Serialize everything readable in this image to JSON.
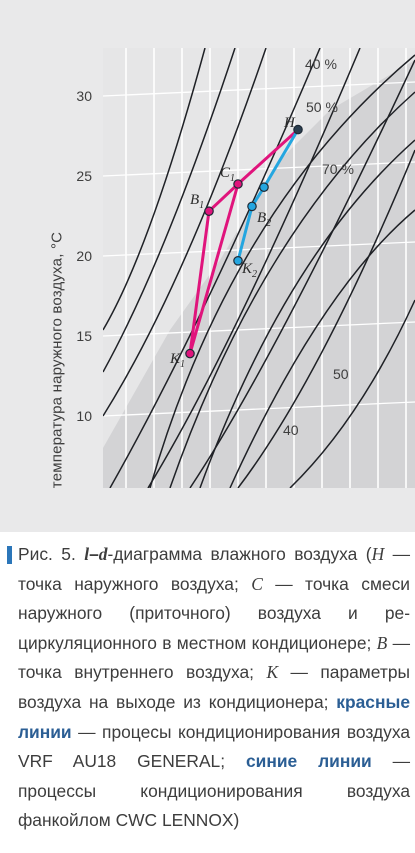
{
  "chart_data": {
    "type": "line",
    "title": "",
    "xlabel": "",
    "ylabel": "температура наружного воздуха, °C",
    "ylim": [
      5.5,
      33
    ],
    "y_ticks": [
      10,
      15,
      20,
      25,
      30
    ],
    "grid": true,
    "rh_curve_labels": [
      "40 %",
      "50 %",
      "70 %"
    ],
    "enthalpy_labels": [
      "50",
      "40"
    ],
    "points": [
      {
        "name": "H",
        "label": "H",
        "t": 27.9
      },
      {
        "name": "C1",
        "label": "C",
        "subscript": "1",
        "t": 24.5
      },
      {
        "name": "B1",
        "label": "B",
        "subscript": "1",
        "t": 22.8
      },
      {
        "name": "K1",
        "label": "K",
        "subscript": "1",
        "t": 13.9
      },
      {
        "name": "C2",
        "label": "",
        "t": 24.3
      },
      {
        "name": "B2",
        "label": "B",
        "subscript": "2",
        "t": 23.1
      },
      {
        "name": "K2",
        "label": "K",
        "subscript": "2",
        "t": 19.7
      }
    ],
    "series": [
      {
        "color": "#e0147c",
        "path": [
          "H",
          "C1",
          "B1",
          "K1",
          "C1"
        ]
      },
      {
        "color": "#24a6e0",
        "path": [
          "H",
          "C2",
          "B2",
          "K2"
        ]
      }
    ]
  },
  "caption": {
    "prefix": "Рис. 5. ",
    "ld": "l",
    "dash1": "–",
    "dd": "d",
    "t1": "-диаграмма влажного воздуха (",
    "H": "H",
    "t2": " — точка наружного воздуха; ",
    "C": "C",
    "t3": " — точка смеси наружного (приточного) воздуха и ре­циркуляционного в местном кондиционере; ",
    "B": "B",
    "t4": " — точка внутреннего воздуха; ",
    "K": "K",
    "t5": " — пара­метры воздуха на выходе из кондиционера; ",
    "red_lines": "красные линии",
    "t6": " — процесы кондициониро­вания воздуха VRF AU18 GENERAL; ",
    "blue_lines": "синие линии",
    "t7": " — процессы кондиционирования воздуха фанкойлом CWC LENNOX)"
  },
  "colors": {
    "magenta": "#e0147c",
    "blue": "#24a6e0",
    "dark_point": "#2b3e4f",
    "caption_bar": "#2b76b9"
  }
}
